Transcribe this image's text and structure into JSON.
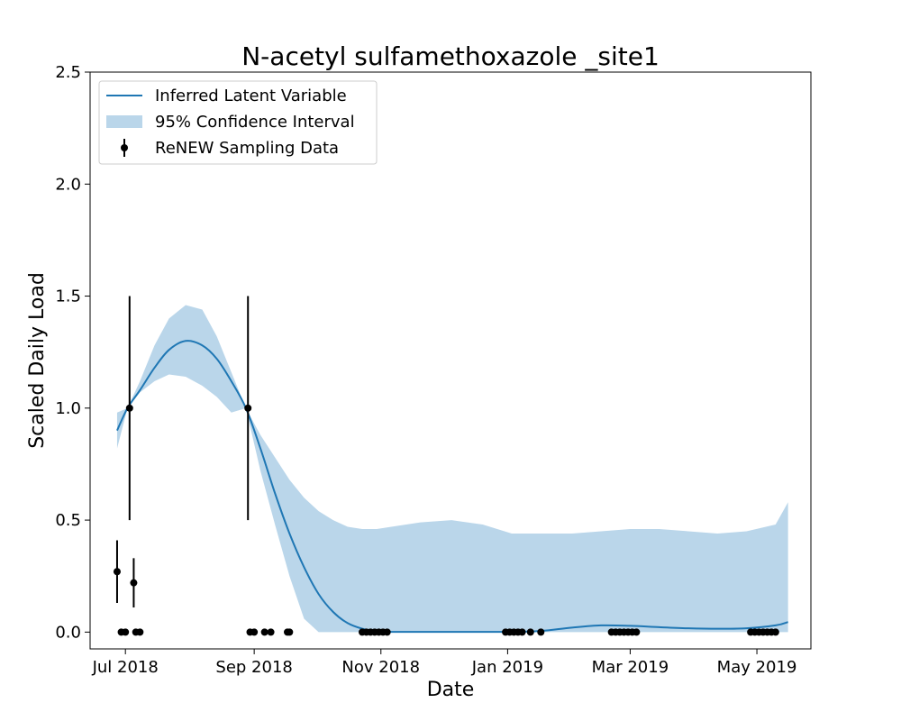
{
  "chart_data": {
    "type": "line",
    "title": "N-acetyl sulfamethoxazole _site1",
    "xlabel": "Date",
    "ylabel": "Scaled Daily Load",
    "xlim": [
      "2018-06-14",
      "2019-05-27"
    ],
    "ylim": [
      -0.075,
      2.5
    ],
    "x_ticks": [
      {
        "date": "2018-07-01",
        "label": "Jul 2018"
      },
      {
        "date": "2018-09-01",
        "label": "Sep 2018"
      },
      {
        "date": "2018-11-01",
        "label": "Nov 2018"
      },
      {
        "date": "2019-01-01",
        "label": "Jan 2019"
      },
      {
        "date": "2019-03-01",
        "label": "Mar 2019"
      },
      {
        "date": "2019-05-01",
        "label": "May 2019"
      }
    ],
    "y_ticks": [
      0.0,
      0.5,
      1.0,
      1.5,
      2.0,
      2.5
    ],
    "y_tick_labels": [
      "0.0",
      "0.5",
      "1.0",
      "1.5",
      "2.0",
      "2.5"
    ],
    "grid": false,
    "legend": {
      "placement": "upper-left",
      "entries": [
        {
          "label": "Inferred Latent Variable",
          "kind": "line",
          "color": "#1f77b4"
        },
        {
          "label": "95% Confidence Interval",
          "kind": "band",
          "color": "#bad6ea"
        },
        {
          "label": "ReNEW Sampling Data",
          "kind": "errorbar",
          "color": "#000000"
        }
      ]
    },
    "series": [
      {
        "name": "Inferred Latent Variable",
        "color": "#1f77b4",
        "x": [
          "2018-06-27",
          "2018-07-02",
          "2018-07-08",
          "2018-07-15",
          "2018-07-22",
          "2018-07-30",
          "2018-08-07",
          "2018-08-14",
          "2018-08-21",
          "2018-08-28",
          "2018-09-04",
          "2018-09-11",
          "2018-09-18",
          "2018-09-25",
          "2018-10-02",
          "2018-10-09",
          "2018-10-16",
          "2018-10-23",
          "2018-10-30",
          "2018-11-06",
          "2018-11-20",
          "2018-12-05",
          "2018-12-20",
          "2019-01-03",
          "2019-01-17",
          "2019-02-01",
          "2019-02-15",
          "2019-03-01",
          "2019-03-15",
          "2019-03-29",
          "2019-04-12",
          "2019-04-26",
          "2019-05-10",
          "2019-05-16"
        ],
        "y": [
          0.9,
          1.0,
          1.08,
          1.18,
          1.26,
          1.3,
          1.28,
          1.22,
          1.12,
          1.0,
          0.82,
          0.62,
          0.44,
          0.29,
          0.17,
          0.09,
          0.04,
          0.015,
          0.003,
          0.001,
          0.001,
          0.001,
          0.001,
          0.001,
          0.005,
          0.02,
          0.03,
          0.028,
          0.022,
          0.017,
          0.015,
          0.017,
          0.03,
          0.045
        ]
      }
    ],
    "confidence_interval": {
      "name": "95% Confidence Interval",
      "color": "#bad6ea",
      "x": [
        "2018-06-27",
        "2018-07-02",
        "2018-07-08",
        "2018-07-15",
        "2018-07-22",
        "2018-07-30",
        "2018-08-07",
        "2018-08-14",
        "2018-08-21",
        "2018-08-28",
        "2018-09-04",
        "2018-09-11",
        "2018-09-18",
        "2018-09-25",
        "2018-10-02",
        "2018-10-09",
        "2018-10-16",
        "2018-10-23",
        "2018-10-30",
        "2018-11-06",
        "2018-11-20",
        "2018-12-05",
        "2018-12-20",
        "2019-01-03",
        "2019-01-17",
        "2019-02-01",
        "2019-02-15",
        "2019-03-01",
        "2019-03-15",
        "2019-03-29",
        "2019-04-12",
        "2019-04-26",
        "2019-05-10",
        "2019-05-16"
      ],
      "lower": [
        0.82,
        1.0,
        1.07,
        1.12,
        1.15,
        1.14,
        1.1,
        1.05,
        0.98,
        1.0,
        0.72,
        0.48,
        0.25,
        0.06,
        0.0,
        0.0,
        0.0,
        0.0,
        0.0,
        0.0,
        0.0,
        0.0,
        0.0,
        0.0,
        0.0,
        0.0,
        0.0,
        0.0,
        0.0,
        0.0,
        0.0,
        0.0,
        0.0,
        0.0
      ],
      "upper": [
        0.98,
        1.0,
        1.12,
        1.28,
        1.4,
        1.46,
        1.44,
        1.32,
        1.16,
        1.0,
        0.88,
        0.78,
        0.68,
        0.6,
        0.54,
        0.5,
        0.47,
        0.46,
        0.46,
        0.47,
        0.49,
        0.5,
        0.48,
        0.44,
        0.44,
        0.44,
        0.45,
        0.46,
        0.46,
        0.45,
        0.44,
        0.45,
        0.48,
        0.58
      ]
    },
    "sampling_data": {
      "name": "ReNEW Sampling Data",
      "color": "#000000",
      "points": [
        {
          "x": "2018-06-27",
          "y": 0.27,
          "err": 0.14
        },
        {
          "x": "2018-07-03",
          "y": 1.0,
          "err": 0.5
        },
        {
          "x": "2018-07-05",
          "y": 0.22,
          "err": 0.11
        },
        {
          "x": "2018-08-29",
          "y": 1.0,
          "err": 0.5
        },
        {
          "x": "2018-06-29",
          "y": 0.0
        },
        {
          "x": "2018-07-01",
          "y": 0.0
        },
        {
          "x": "2018-07-06",
          "y": 0.0
        },
        {
          "x": "2018-07-08",
          "y": 0.0
        },
        {
          "x": "2018-08-30",
          "y": 0.0
        },
        {
          "x": "2018-09-01",
          "y": 0.0
        },
        {
          "x": "2018-09-06",
          "y": 0.0
        },
        {
          "x": "2018-09-09",
          "y": 0.0
        },
        {
          "x": "2018-09-17",
          "y": 0.0
        },
        {
          "x": "2018-09-18",
          "y": 0.0
        },
        {
          "x": "2018-10-23",
          "y": 0.0
        },
        {
          "x": "2018-10-25",
          "y": 0.0
        },
        {
          "x": "2018-10-27",
          "y": 0.0
        },
        {
          "x": "2018-10-29",
          "y": 0.0
        },
        {
          "x": "2018-10-31",
          "y": 0.0
        },
        {
          "x": "2018-11-02",
          "y": 0.0
        },
        {
          "x": "2018-11-04",
          "y": 0.0
        },
        {
          "x": "2018-12-31",
          "y": 0.0
        },
        {
          "x": "2019-01-02",
          "y": 0.0
        },
        {
          "x": "2019-01-04",
          "y": 0.0
        },
        {
          "x": "2019-01-06",
          "y": 0.0
        },
        {
          "x": "2019-01-08",
          "y": 0.0
        },
        {
          "x": "2019-01-12",
          "y": 0.0
        },
        {
          "x": "2019-01-17",
          "y": 0.0
        },
        {
          "x": "2019-02-20",
          "y": 0.0
        },
        {
          "x": "2019-02-22",
          "y": 0.0
        },
        {
          "x": "2019-02-24",
          "y": 0.0
        },
        {
          "x": "2019-02-26",
          "y": 0.0
        },
        {
          "x": "2019-02-28",
          "y": 0.0
        },
        {
          "x": "2019-03-02",
          "y": 0.0
        },
        {
          "x": "2019-03-04",
          "y": 0.0
        },
        {
          "x": "2019-04-28",
          "y": 0.0
        },
        {
          "x": "2019-04-30",
          "y": 0.0
        },
        {
          "x": "2019-05-02",
          "y": 0.0
        },
        {
          "x": "2019-05-04",
          "y": 0.0
        },
        {
          "x": "2019-05-06",
          "y": 0.0
        },
        {
          "x": "2019-05-08",
          "y": 0.0
        },
        {
          "x": "2019-05-10",
          "y": 0.0
        }
      ]
    }
  }
}
